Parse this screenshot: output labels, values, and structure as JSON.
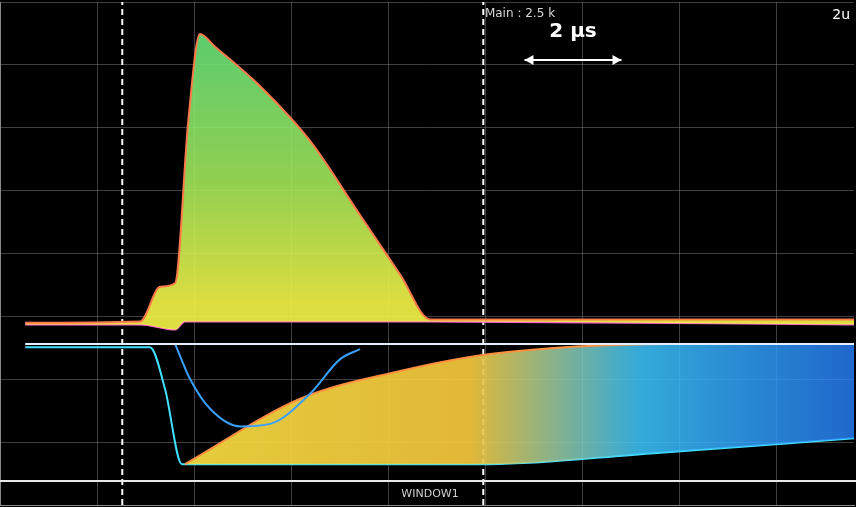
{
  "chart_data": {
    "type": "line",
    "annotations": [
      "Main : 2.5 k",
      "2 μs",
      "2u",
      "WINDOW1"
    ],
    "xlim": [
      0,
      17.6
    ],
    "xticks": [
      0,
      2,
      4,
      6,
      8,
      10,
      12,
      14,
      16
    ],
    "ylim": [
      0,
      8
    ],
    "yticks": [
      0,
      1,
      2,
      3,
      4,
      5,
      6,
      7,
      8
    ],
    "grid": true,
    "tick_labels": false,
    "cursors_x": [
      2.52,
      9.96
    ],
    "series": [
      {
        "color": "#ff7a4a",
        "x": [
          0.52,
          2.89,
          3.3,
          3.61,
          3.88,
          4.12,
          4.43,
          5.36,
          6.39,
          7.42,
          8.25,
          8.87,
          17.6
        ],
        "values": [
          2.9,
          2.92,
          3.47,
          3.53,
          6.1,
          7.49,
          7.29,
          6.66,
          5.79,
          4.61,
          3.66,
          2.95,
          2.95
        ]
      },
      {
        "color": "#ff66cc",
        "x": [
          0.52,
          2.89,
          3.61,
          3.81,
          8.87,
          17.6
        ],
        "values": [
          2.87,
          2.87,
          2.79,
          2.92,
          2.92,
          2.87
        ]
      },
      {
        "color": "#e0f0ff",
        "x": [
          0.52,
          17.6
        ],
        "values": [
          2.56,
          2.56
        ]
      },
      {
        "color": "#3aa0ff",
        "x": [
          3.61,
          3.92,
          4.33,
          4.95,
          5.57,
          6.39,
          7.01,
          7.42
        ],
        "values": [
          2.56,
          2.0,
          1.53,
          1.25,
          1.29,
          1.77,
          2.32,
          2.48
        ]
      },
      {
        "color": "#ff9040",
        "x": [
          3.81,
          6.19,
          8.25,
          10.1,
          13.82,
          17.6
        ],
        "values": [
          0.65,
          1.69,
          2.13,
          2.4,
          2.56,
          2.56
        ]
      },
      {
        "color": "#40e0ff",
        "x": [
          0.52,
          3.09,
          3.4,
          3.75,
          10.1,
          13.4,
          17.6
        ],
        "values": [
          2.51,
          2.51,
          1.85,
          0.65,
          0.65,
          0.82,
          1.06
        ]
      }
    ]
  }
}
